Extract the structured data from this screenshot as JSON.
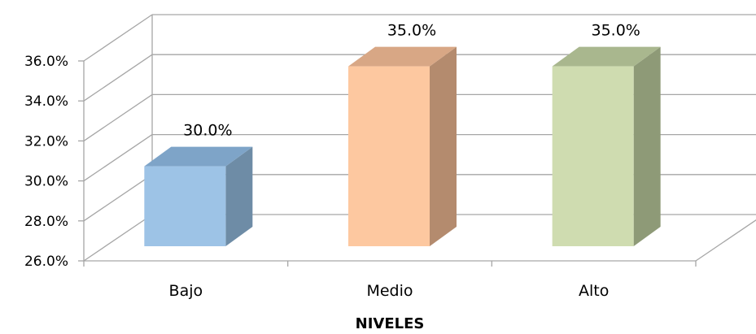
{
  "chart_data": {
    "type": "bar",
    "style": "3d-column",
    "categories": [
      "Bajo",
      "Medio",
      "Alto"
    ],
    "values": [
      30.0,
      35.0,
      35.0
    ],
    "data_labels": [
      "30.0%",
      "35.0%",
      "35.0%"
    ],
    "xlabel": "NIVELES",
    "ylabel": "",
    "ylim": [
      26.0,
      36.0
    ],
    "yticks": [
      26.0,
      28.0,
      30.0,
      32.0,
      34.0,
      36.0
    ],
    "ytick_labels": [
      "26.0%",
      "28.0%",
      "30.0%",
      "32.0%",
      "34.0%",
      "36.0%"
    ],
    "grid": true,
    "legend": "none",
    "colors": {
      "front": [
        "#9dc3e6",
        "#fdc8a0",
        "#cfdcb0"
      ],
      "side": [
        "#6e8ca6",
        "#b48b6e",
        "#8e9a77"
      ],
      "top": [
        "#7ea4c8",
        "#d8a785",
        "#a9b78e"
      ],
      "grid": "#a6a6a6"
    }
  }
}
